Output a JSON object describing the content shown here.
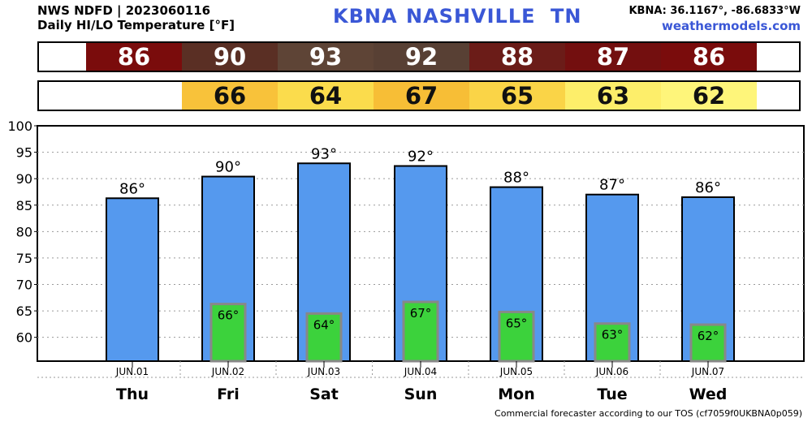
{
  "header": {
    "source": "NWS NDFD | 2023060116",
    "title": "Daily HI/LO Temperature [°F]",
    "station": "KBNA",
    "city": "NASHVILLE",
    "state": "TN",
    "coords": "KBNA: 36.1167°, -86.6833°W",
    "site": "weathermodels.com"
  },
  "strips": {
    "hi": [
      {
        "text": "86",
        "color": "#7a0c0c"
      },
      {
        "text": "90",
        "color": "#5a2f24"
      },
      {
        "text": "93",
        "color": "#5e4436"
      },
      {
        "text": "92",
        "color": "#584034"
      },
      {
        "text": "88",
        "color": "#6b1c18"
      },
      {
        "text": "87",
        "color": "#730f0f"
      },
      {
        "text": "86",
        "color": "#7a0c0c"
      }
    ],
    "lo": [
      {
        "text": "",
        "color": "#ffffff"
      },
      {
        "text": "66",
        "color": "#f8c23a"
      },
      {
        "text": "64",
        "color": "#fbdc4c"
      },
      {
        "text": "67",
        "color": "#f7be36"
      },
      {
        "text": "65",
        "color": "#fad447"
      },
      {
        "text": "63",
        "color": "#fdee6a"
      },
      {
        "text": "62",
        "color": "#fef57a"
      }
    ]
  },
  "chart_data": {
    "type": "bar",
    "categories": [
      "Thu",
      "Fri",
      "Sat",
      "Sun",
      "Mon",
      "Tue",
      "Wed"
    ],
    "dates": [
      "JUN.01",
      "JUN.02",
      "JUN.03",
      "JUN.04",
      "JUN.05",
      "JUN.06",
      "JUN.07"
    ],
    "series": [
      {
        "values": [
          86.3,
          90.4,
          92.9,
          92.4,
          88.4,
          87.0,
          86.5
        ],
        "labels": [
          "86°",
          "90°",
          "93°",
          "92°",
          "88°",
          "87°",
          "86°"
        ],
        "color": "#5599ee"
      },
      {
        "values": [
          null,
          66.3,
          64.5,
          66.7,
          64.8,
          62.6,
          62.4
        ],
        "labels": [
          "",
          "66°",
          "64°",
          "67°",
          "65°",
          "63°",
          "62°"
        ],
        "color": "#3cd23c"
      }
    ],
    "yticks": [
      60,
      65,
      70,
      75,
      80,
      85,
      90,
      95,
      100
    ],
    "ylim": [
      55.5,
      100
    ],
    "grid": true
  },
  "footer": "Commercial forecaster according to our TOS (cf7059f0UKBNA0p059)"
}
